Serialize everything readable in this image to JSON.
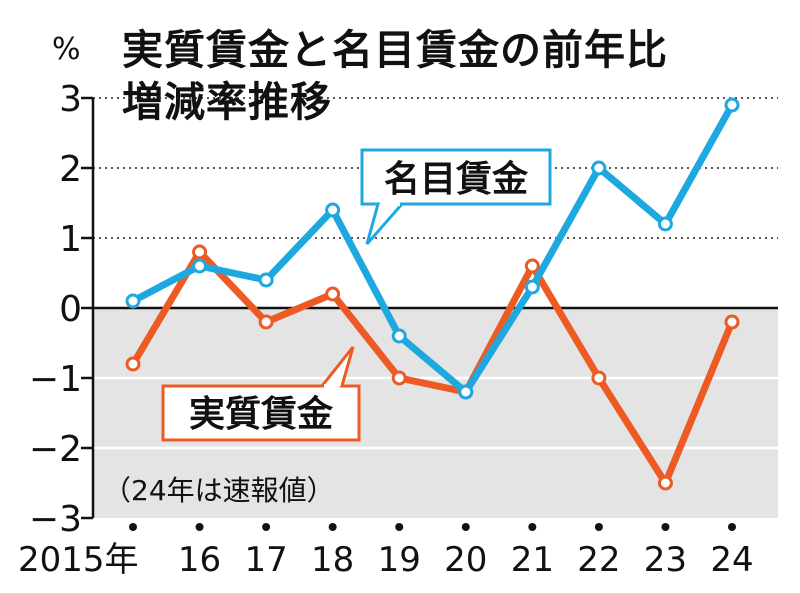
{
  "title_line1": "実質賃金と名目賃金の前年比",
  "title_line2": "増減率推移",
  "unit": "%",
  "note": "（24年は速報値）",
  "colors": {
    "nominal": "#1ea8e0",
    "real": "#ee5a24",
    "negative_band": "#e4e4e4"
  },
  "chart_data": {
    "type": "line",
    "title": "実質賃金と名目賃金の前年比増減率推移",
    "ylabel": "%",
    "ylim": [
      -3,
      3
    ],
    "yticks": [
      "3",
      "2",
      "1",
      "0",
      "−1",
      "−2",
      "−3"
    ],
    "yticks_values": [
      3,
      2,
      1,
      0,
      -1,
      -2,
      -3
    ],
    "x": [
      "2015年",
      "16",
      "17",
      "18",
      "19",
      "20",
      "21",
      "22",
      "23",
      "24"
    ],
    "grid": "dotted at 1 and 2; shaded below 0",
    "series": [
      {
        "name": "名目賃金",
        "color": "#1ea8e0",
        "values": [
          0.1,
          0.6,
          0.4,
          1.4,
          -0.4,
          -1.2,
          0.3,
          2.0,
          1.2,
          2.9
        ]
      },
      {
        "name": "実質賃金",
        "color": "#ee5a24",
        "values": [
          -0.8,
          0.8,
          -0.2,
          0.2,
          -1.0,
          -1.2,
          0.6,
          -1.0,
          -2.5,
          -0.2
        ]
      }
    ]
  }
}
